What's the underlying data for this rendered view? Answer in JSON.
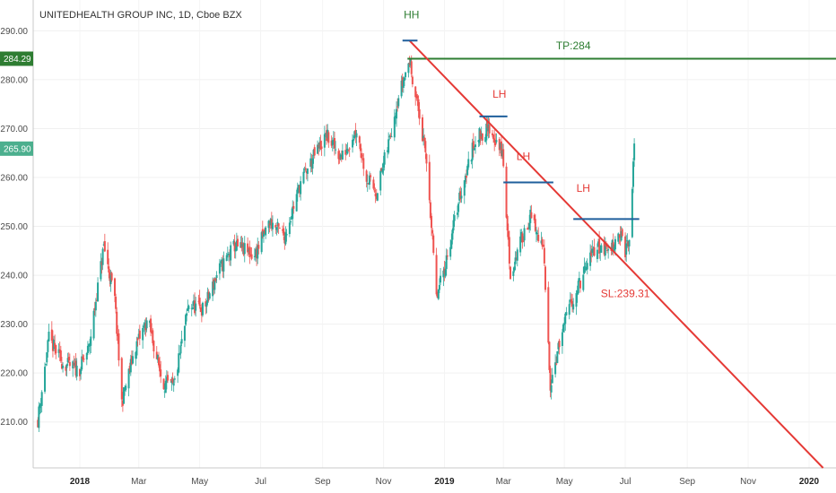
{
  "chart_data": {
    "type": "candlestick",
    "title": "UNITEDHEALTH GROUP INC, 1D, Cboe BZX",
    "ylim": [
      200.6,
      296.3
    ],
    "y_ticks": [
      "290.00",
      "280.00",
      "270.00",
      "260.00",
      "250.00",
      "240.00",
      "230.00",
      "220.00",
      "210.00"
    ],
    "y_tick_values": [
      290,
      280,
      270,
      260,
      250,
      240,
      230,
      220,
      210
    ],
    "x_ticks": [
      {
        "label": "2018",
        "bold": true,
        "date": "2018-01-01"
      },
      {
        "label": "Mar",
        "bold": false,
        "date": "2018-03-01"
      },
      {
        "label": "May",
        "bold": false,
        "date": "2018-05-01"
      },
      {
        "label": "Jul",
        "bold": false,
        "date": "2018-07-01"
      },
      {
        "label": "Sep",
        "bold": false,
        "date": "2018-09-01"
      },
      {
        "label": "Nov",
        "bold": false,
        "date": "2018-11-01"
      },
      {
        "label": "2019",
        "bold": true,
        "date": "2019-01-01"
      },
      {
        "label": "Mar",
        "bold": false,
        "date": "2019-03-01"
      },
      {
        "label": "May",
        "bold": false,
        "date": "2019-05-01"
      },
      {
        "label": "Jul",
        "bold": false,
        "date": "2019-07-01"
      },
      {
        "label": "Sep",
        "bold": false,
        "date": "2019-09-01"
      },
      {
        "label": "Nov",
        "bold": false,
        "date": "2019-11-01"
      },
      {
        "label": "2020",
        "bold": true,
        "date": "2020-01-01"
      }
    ],
    "price_path": [
      [
        "2017-11-20",
        210.5
      ],
      [
        "2017-12-01",
        227.0
      ],
      [
        "2017-12-15",
        222.0
      ],
      [
        "2017-12-31",
        220.5
      ],
      [
        "2018-01-10",
        225.0
      ],
      [
        "2018-01-25",
        246.0
      ],
      [
        "2018-02-05",
        235.0
      ],
      [
        "2018-02-12",
        214.0
      ],
      [
        "2018-02-25",
        225.0
      ],
      [
        "2018-03-10",
        231.0
      ],
      [
        "2018-03-25",
        218.0
      ],
      [
        "2018-04-05",
        217.0
      ],
      [
        "2018-04-20",
        234.0
      ],
      [
        "2018-05-05",
        233.0
      ],
      [
        "2018-05-20",
        241.0
      ],
      [
        "2018-06-05",
        246.0
      ],
      [
        "2018-06-25",
        244.0
      ],
      [
        "2018-07-10",
        251.0
      ],
      [
        "2018-07-25",
        248.0
      ],
      [
        "2018-08-10",
        259.0
      ],
      [
        "2018-08-25",
        265.0
      ],
      [
        "2018-09-05",
        268.5
      ],
      [
        "2018-09-20",
        264.0
      ],
      [
        "2018-10-05",
        270.0
      ],
      [
        "2018-10-15",
        260.0
      ],
      [
        "2018-10-25",
        257.0
      ],
      [
        "2018-11-05",
        266.0
      ],
      [
        "2018-11-15",
        276.0
      ],
      [
        "2018-11-27",
        284.0
      ],
      [
        "2018-12-05",
        275.0
      ],
      [
        "2018-12-15",
        262.0
      ],
      [
        "2018-12-24",
        235.0
      ],
      [
        "2019-01-05",
        245.0
      ],
      [
        "2019-01-15",
        255.0
      ],
      [
        "2019-02-01",
        268.0
      ],
      [
        "2019-02-15",
        270.0
      ],
      [
        "2019-02-28",
        265.0
      ],
      [
        "2019-03-08",
        240.0
      ],
      [
        "2019-03-20",
        248.0
      ],
      [
        "2019-03-28",
        252.0
      ],
      [
        "2019-04-10",
        245.0
      ],
      [
        "2019-04-17",
        218.0
      ],
      [
        "2019-04-25",
        225.0
      ],
      [
        "2019-05-05",
        233.0
      ],
      [
        "2019-05-20",
        240.0
      ],
      [
        "2019-06-01",
        246.0
      ],
      [
        "2019-06-15",
        245.0
      ],
      [
        "2019-06-25",
        249.0
      ],
      [
        "2019-07-01",
        245.0
      ],
      [
        "2019-07-05",
        247.0
      ],
      [
        "2019-07-08",
        258.0
      ],
      [
        "2019-07-10",
        265.9
      ]
    ],
    "lines": {
      "tp_price": 284.29,
      "tp_start": "2018-11-25",
      "trendline": {
        "from": [
          "2018-11-27",
          288.0
        ],
        "to": [
          "2020-01-15",
          200.6
        ]
      },
      "levels": [
        {
          "from": "2018-11-20",
          "to": "2018-12-05",
          "y": 288.0
        },
        {
          "from": "2019-02-05",
          "to": "2019-03-05",
          "y": 272.5
        },
        {
          "from": "2019-03-01",
          "to": "2019-04-20",
          "y": 259.0
        },
        {
          "from": "2019-05-10",
          "to": "2019-07-15",
          "y": 251.5
        }
      ]
    },
    "annotations": [
      {
        "text": "HH",
        "date": "2018-11-29",
        "y": 292.5,
        "color": "#2e7d32"
      },
      {
        "text": "TP:284",
        "date": "2019-05-10",
        "y": 286.2,
        "color": "#2e7d32"
      },
      {
        "text": "LH",
        "date": "2019-02-25",
        "y": 276.3,
        "color": "#e53935"
      },
      {
        "text": "LH",
        "date": "2019-03-21",
        "y": 263.6,
        "color": "#e53935"
      },
      {
        "text": "LH",
        "date": "2019-05-20",
        "y": 257.1,
        "color": "#e53935"
      },
      {
        "text": "SL:239.31",
        "date": "2019-07-01",
        "y": 235.5,
        "color": "#e53935"
      }
    ],
    "price_badges": [
      {
        "label": "284.29",
        "value": 284.29,
        "color": "#2e7d32"
      },
      {
        "label": "265.90",
        "value": 265.9,
        "color": "#4caf8e"
      }
    ],
    "colors": {
      "up": "#26a69a",
      "down": "#ef5350",
      "trend": "#e53935",
      "level": "#1f5f9c",
      "tp": "#2e7d32"
    }
  }
}
